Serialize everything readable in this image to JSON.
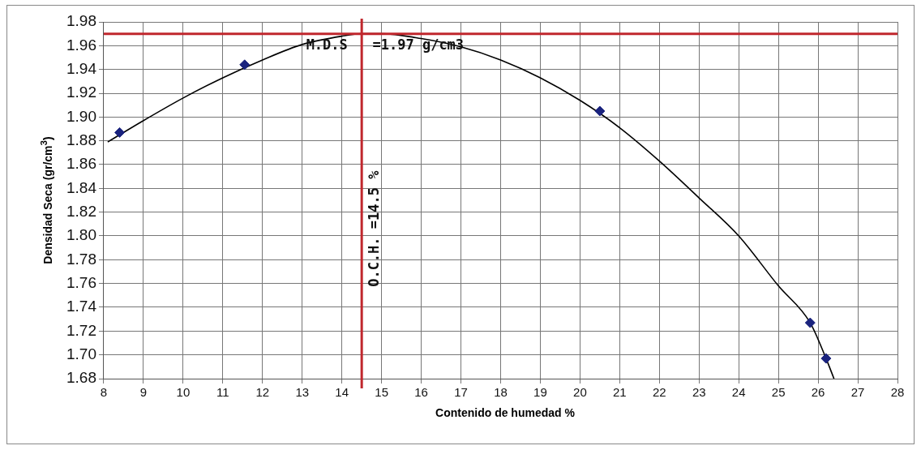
{
  "chart_data": {
    "type": "scatter",
    "xlabel": "Contenido de humedad %",
    "ylabel": "Densidad Seca (gr/cm$^{3}$)",
    "xlim": [
      8,
      28
    ],
    "xticks": [
      8,
      9,
      10,
      11,
      12,
      13,
      14,
      15,
      16,
      17,
      18,
      19,
      20,
      21,
      22,
      23,
      24,
      25,
      26,
      27,
      28
    ],
    "ylim": [
      1.68,
      1.98
    ],
    "yticks": [
      1.68,
      {
        "value": 1.7,
        "label": "1.70"
      },
      1.72,
      1.74,
      1.76,
      1.78,
      {
        "value": 1.8,
        "label": "1.80"
      },
      1.82,
      1.84,
      1.86,
      1.88,
      {
        "value": 1.9,
        "label": "1.90"
      },
      1.92,
      1.94,
      1.96,
      1.98
    ],
    "grid": true,
    "legend": false,
    "series": [
      {
        "type": "line",
        "color": "#000000",
        "marker": "none",
        "x": [
          8.1,
          9,
          10,
          11,
          12,
          13,
          14,
          14.5,
          15,
          16,
          17,
          18,
          19,
          20,
          21,
          22,
          23,
          24,
          25,
          25.8,
          26.2,
          26.4
        ],
        "values": [
          1.879,
          1.897,
          1.916,
          1.933,
          1.948,
          1.961,
          1.968,
          1.97,
          1.97,
          1.966,
          1.959,
          1.948,
          1.933,
          1.914,
          1.891,
          1.863,
          1.832,
          1.8,
          1.758,
          1.727,
          1.697,
          1.68
        ]
      },
      {
        "type": "scatter",
        "color": "#1a237e",
        "marker": "diamond",
        "x": [
          8.4,
          11.55,
          20.5,
          25.8,
          26.2
        ],
        "values": [
          1.887,
          1.944,
          1.905,
          1.727,
          1.697
        ]
      }
    ],
    "ref_lines": [
      {
        "axis": "y",
        "value": 1.97,
        "label": "M.D.S   =1.97 g/cm3",
        "color": "#c0272d"
      },
      {
        "axis": "x",
        "value": 14.5,
        "label": "O.C.H. =14.5 %",
        "color": "#c0272d"
      }
    ]
  }
}
